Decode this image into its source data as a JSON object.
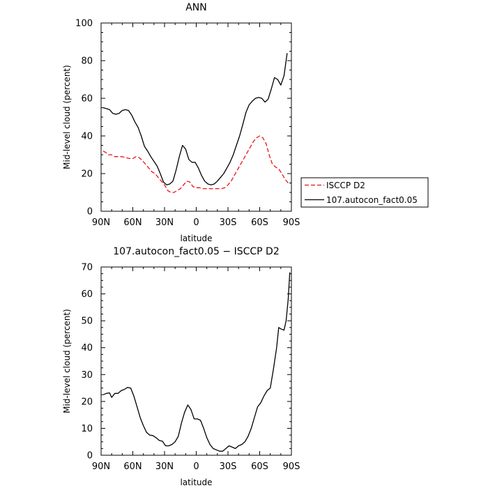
{
  "chart_data": [
    {
      "type": "line",
      "title": "ANN",
      "xlabel": "latitude",
      "ylabel": "Mid-level cloud (percent)",
      "xlim": [
        90,
        -90
      ],
      "ylim": [
        0,
        100
      ],
      "xticks": [
        {
          "value": 90,
          "label": "90N"
        },
        {
          "value": 60,
          "label": "60N"
        },
        {
          "value": 30,
          "label": "30N"
        },
        {
          "value": 0,
          "label": "0"
        },
        {
          "value": -30,
          "label": "30S"
        },
        {
          "value": -60,
          "label": "60S"
        },
        {
          "value": -90,
          "label": "90S"
        }
      ],
      "yticks": [
        0,
        20,
        40,
        60,
        80,
        100
      ],
      "legend": "right",
      "series": [
        {
          "name": "ISCCP D2",
          "color": "#e8141c",
          "dash": "dashed",
          "points": [
            [
              88,
              32
            ],
            [
              85,
              31
            ],
            [
              83,
              30
            ],
            [
              80,
              30
            ],
            [
              77,
              29
            ],
            [
              74,
              29
            ],
            [
              70,
              29
            ],
            [
              67,
              28.5
            ],
            [
              63,
              28
            ],
            [
              60,
              28
            ],
            [
              57,
              29
            ],
            [
              54,
              28.5
            ],
            [
              51,
              27
            ],
            [
              48,
              25
            ],
            [
              45,
              23
            ],
            [
              42,
              21
            ],
            [
              39,
              20
            ],
            [
              36,
              18
            ],
            [
              33,
              16
            ],
            [
              30,
              14
            ],
            [
              27,
              11
            ],
            [
              24,
              10
            ],
            [
              21,
              10
            ],
            [
              18,
              11
            ],
            [
              15,
              12
            ],
            [
              12,
              14
            ],
            [
              9,
              16
            ],
            [
              6,
              15.5
            ],
            [
              3,
              13
            ],
            [
              0,
              12.5
            ],
            [
              -3,
              12.5
            ],
            [
              -6,
              12
            ],
            [
              -9,
              12
            ],
            [
              -12,
              12
            ],
            [
              -15,
              12
            ],
            [
              -18,
              12
            ],
            [
              -21,
              12
            ],
            [
              -24,
              12
            ],
            [
              -27,
              12.5
            ],
            [
              -30,
              14
            ],
            [
              -33,
              16
            ],
            [
              -36,
              19
            ],
            [
              -39,
              22
            ],
            [
              -42,
              25
            ],
            [
              -45,
              28
            ],
            [
              -48,
              31
            ],
            [
              -51,
              34
            ],
            [
              -54,
              37
            ],
            [
              -57,
              39
            ],
            [
              -60,
              40
            ],
            [
              -63,
              39
            ],
            [
              -66,
              36
            ],
            [
              -69,
              30
            ],
            [
              -72,
              25
            ],
            [
              -75,
              23.5
            ],
            [
              -78,
              22.5
            ],
            [
              -81,
              20
            ],
            [
              -84,
              17
            ],
            [
              -87,
              15
            ]
          ]
        },
        {
          "name": "107.autocon_fact0.05",
          "color": "#000000",
          "dash": "solid",
          "points": [
            [
              88,
              55
            ],
            [
              85,
              54.5
            ],
            [
              82,
              54
            ],
            [
              79,
              52
            ],
            [
              76,
              51.5
            ],
            [
              73,
              52
            ],
            [
              70,
              53.5
            ],
            [
              67,
              54
            ],
            [
              64,
              53.5
            ],
            [
              61,
              51
            ],
            [
              58,
              47.5
            ],
            [
              55,
              44.5
            ],
            [
              52,
              40
            ],
            [
              49,
              34.5
            ],
            [
              46,
              32
            ],
            [
              43,
              29
            ],
            [
              40,
              26.5
            ],
            [
              37,
              24
            ],
            [
              34,
              20
            ],
            [
              31,
              15.5
            ],
            [
              28,
              14
            ],
            [
              25,
              14.5
            ],
            [
              22,
              16
            ],
            [
              19,
              22
            ],
            [
              16,
              29
            ],
            [
              13,
              35
            ],
            [
              10,
              33
            ],
            [
              7,
              27.5
            ],
            [
              4,
              26
            ],
            [
              1,
              26
            ],
            [
              -2,
              23
            ],
            [
              -5,
              19
            ],
            [
              -8,
              16
            ],
            [
              -11,
              14.5
            ],
            [
              -14,
              14
            ],
            [
              -17,
              14.5
            ],
            [
              -20,
              16
            ],
            [
              -23,
              18
            ],
            [
              -26,
              20
            ],
            [
              -29,
              23
            ],
            [
              -32,
              26
            ],
            [
              -35,
              30
            ],
            [
              -38,
              35
            ],
            [
              -41,
              40
            ],
            [
              -44,
              46
            ],
            [
              -47,
              52.5
            ],
            [
              -50,
              56.5
            ],
            [
              -53,
              58.5
            ],
            [
              -56,
              60
            ],
            [
              -59,
              60.5
            ],
            [
              -62,
              60
            ],
            [
              -65,
              58
            ],
            [
              -68,
              59.5
            ],
            [
              -71,
              65
            ],
            [
              -74,
              71
            ],
            [
              -77,
              70
            ],
            [
              -80,
              67
            ],
            [
              -83,
              72
            ],
            [
              -86,
              84
            ]
          ]
        }
      ]
    },
    {
      "type": "line",
      "title": "107.autocon_fact0.05 − ISCCP D2",
      "xlabel": "latitude",
      "ylabel": "Mid-level cloud (percent)",
      "xlim": [
        90,
        -90
      ],
      "ylim": [
        0,
        70
      ],
      "xticks": [
        {
          "value": 90,
          "label": "90N"
        },
        {
          "value": 60,
          "label": "60N"
        },
        {
          "value": 30,
          "label": "30N"
        },
        {
          "value": 0,
          "label": "0"
        },
        {
          "value": -30,
          "label": "30S"
        },
        {
          "value": -60,
          "label": "60S"
        },
        {
          "value": -90,
          "label": "90S"
        }
      ],
      "yticks": [
        0,
        10,
        20,
        30,
        40,
        50,
        60,
        70
      ],
      "series": [
        {
          "color": "#000000",
          "dash": "solid",
          "points": [
            [
              88,
              22.5
            ],
            [
              85,
              23
            ],
            [
              82,
              23.2
            ],
            [
              80,
              21.5
            ],
            [
              77,
              23
            ],
            [
              74,
              23
            ],
            [
              71,
              24
            ],
            [
              68,
              24.5
            ],
            [
              65,
              25.2
            ],
            [
              62,
              25
            ],
            [
              59,
              22
            ],
            [
              56,
              18
            ],
            [
              53,
              14
            ],
            [
              50,
              11
            ],
            [
              47,
              8.5
            ],
            [
              44,
              7.5
            ],
            [
              41,
              7.3
            ],
            [
              38,
              6.5
            ],
            [
              35,
              5.5
            ],
            [
              32,
              5.2
            ],
            [
              29,
              3.5
            ],
            [
              26,
              3.5
            ],
            [
              23,
              4
            ],
            [
              20,
              5
            ],
            [
              17,
              7
            ],
            [
              14,
              12
            ],
            [
              11,
              16
            ],
            [
              8,
              18.7
            ],
            [
              5,
              17
            ],
            [
              2,
              13.5
            ],
            [
              -1,
              13.5
            ],
            [
              -4,
              13
            ],
            [
              -7,
              10
            ],
            [
              -10,
              6.5
            ],
            [
              -13,
              4
            ],
            [
              -16,
              2.5
            ],
            [
              -19,
              2
            ],
            [
              -22,
              1.5
            ],
            [
              -25,
              1.5
            ],
            [
              -28,
              2.5
            ],
            [
              -31,
              3.5
            ],
            [
              -34,
              3
            ],
            [
              -37,
              2.5
            ],
            [
              -40,
              3.5
            ],
            [
              -43,
              4
            ],
            [
              -46,
              5
            ],
            [
              -49,
              7
            ],
            [
              -52,
              10
            ],
            [
              -55,
              14
            ],
            [
              -58,
              18
            ],
            [
              -61,
              19.5
            ],
            [
              -64,
              22
            ],
            [
              -67,
              24
            ],
            [
              -70,
              25
            ],
            [
              -73,
              32
            ],
            [
              -76,
              40
            ],
            [
              -78,
              47.5
            ],
            [
              -80,
              47
            ],
            [
              -83,
              46.5
            ],
            [
              -85,
              50
            ],
            [
              -87,
              58
            ],
            [
              -88.5,
              68
            ]
          ]
        }
      ]
    }
  ]
}
